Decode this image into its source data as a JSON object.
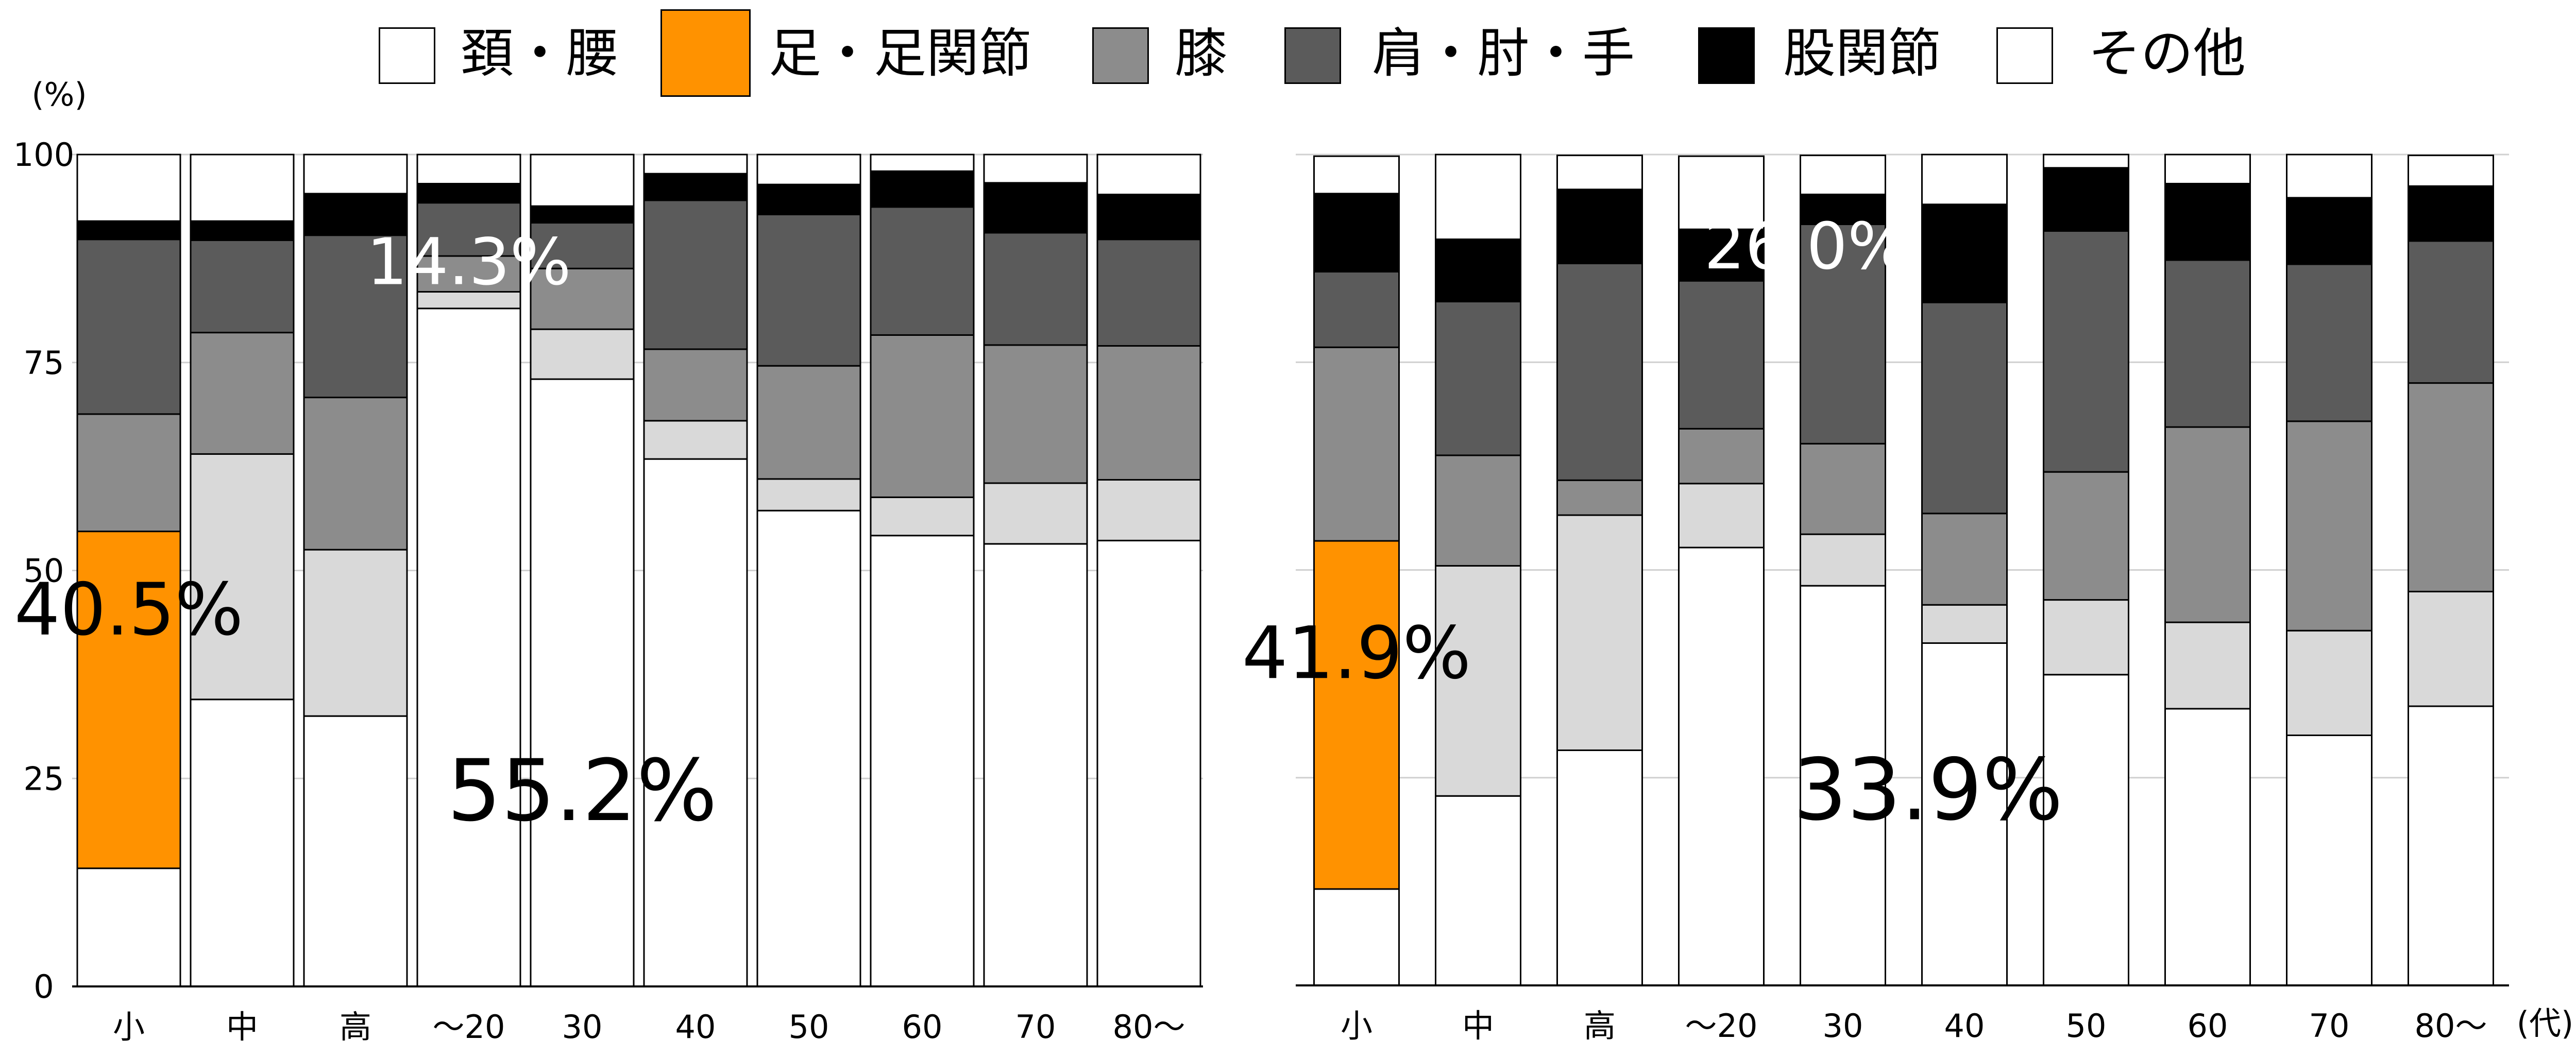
{
  "legend": {
    "items": [
      {
        "label": "頚・腰",
        "color": "#ffffff"
      },
      {
        "label": "足・足関節",
        "color": "#ff9200"
      },
      {
        "label": "膝",
        "color": "#8c8c8c"
      },
      {
        "label": "肩・肘・手",
        "color": "#5b5b5b"
      },
      {
        "label": "股関節",
        "color": "#000000"
      },
      {
        "label": "その他",
        "color": "#ffffff"
      }
    ]
  },
  "y_axis_unit": "(%)",
  "x_axis_unit": "(代)",
  "colors": {
    "neck_back": "#ffffff",
    "unlabeled": "#d9d9d9",
    "foot_ankle": "#ff9200",
    "knee": "#8c8c8c",
    "shoulder_elbow_hand": "#5b5b5b",
    "hip": "#000000",
    "other": "#ffffff",
    "gridline": "#d0d0d0"
  },
  "chart_data": [
    {
      "type": "bar",
      "stacked": true,
      "categories": [
        "小",
        "中",
        "高",
        "～20",
        "30",
        "40",
        "50",
        "60",
        "70",
        "80～"
      ],
      "ylim": [
        0,
        100
      ],
      "yticks": [
        0,
        25,
        50,
        75,
        100
      ],
      "grid": true,
      "legend_position": "top",
      "series": [
        {
          "name": "頚・腰",
          "color": "#ffffff",
          "values": [
            14.2,
            34.5,
            32.5,
            81.5,
            73.0,
            63.4,
            57.2,
            54.2,
            53.2,
            53.6
          ]
        },
        {
          "color": "#d9d9d9",
          "values": [
            0,
            29.5,
            20.0,
            2.0,
            6.0,
            4.6,
            3.8,
            4.6,
            7.3,
            7.3
          ]
        },
        {
          "name": "足・足関節",
          "color": "#ff9200",
          "values": [
            40.5,
            0,
            0,
            0,
            0,
            0,
            0,
            0,
            0,
            0
          ]
        },
        {
          "name": "膝",
          "color": "#8c8c8c",
          "values": [
            14.1,
            14.6,
            18.3,
            4.3,
            7.3,
            8.6,
            13.6,
            19.5,
            16.6,
            16.1
          ]
        },
        {
          "name": "肩・肘・手",
          "color": "#5b5b5b",
          "values": [
            21.0,
            11.1,
            19.5,
            6.4,
            5.5,
            17.9,
            18.2,
            15.4,
            13.5,
            12.8
          ]
        },
        {
          "name": "股関節",
          "color": "#000000",
          "values": [
            2.2,
            2.3,
            5.0,
            2.3,
            2.0,
            3.2,
            3.6,
            4.3,
            6.0,
            5.4
          ]
        },
        {
          "name": "その他",
          "color": "#ffffff",
          "values": [
            8.0,
            8.0,
            4.7,
            3.5,
            6.2,
            2.3,
            3.6,
            2.0,
            3.4,
            4.8
          ]
        }
      ],
      "annotations": [
        {
          "text": "40.5%",
          "category": "小",
          "y": 42
        },
        {
          "text": "14.3%",
          "category": "～20",
          "y": 90
        },
        {
          "text": "55.2%",
          "category": "～20–40",
          "y": 20
        }
      ]
    },
    {
      "type": "bar",
      "stacked": true,
      "categories": [
        "小",
        "中",
        "高",
        "～20",
        "30",
        "40",
        "50",
        "60",
        "70",
        "80～"
      ],
      "ylim": [
        0,
        100
      ],
      "yticks": [
        0,
        25,
        50,
        75,
        100
      ],
      "grid": true,
      "series": [
        {
          "name": "頚・腰",
          "color": "#ffffff",
          "values": [
            11.6,
            22.8,
            28.3,
            52.7,
            48.1,
            41.2,
            37.4,
            33.3,
            30.1,
            33.6
          ]
        },
        {
          "color": "#d9d9d9",
          "values": [
            0,
            27.7,
            28.3,
            7.7,
            6.2,
            4.6,
            9.0,
            10.4,
            12.6,
            13.8
          ]
        },
        {
          "name": "足・足関節",
          "color": "#ff9200",
          "values": [
            41.9,
            0,
            0,
            0,
            0,
            0,
            0,
            0,
            0,
            0
          ]
        },
        {
          "name": "膝",
          "color": "#8c8c8c",
          "values": [
            23.3,
            13.3,
            4.2,
            6.6,
            10.9,
            11.0,
            15.4,
            23.5,
            25.2,
            25.1
          ]
        },
        {
          "name": "肩・肘・手",
          "color": "#5b5b5b",
          "values": [
            9.1,
            18.5,
            26.1,
            17.8,
            26.4,
            25.4,
            29.0,
            20.1,
            18.9,
            17.1
          ]
        },
        {
          "name": "股関節",
          "color": "#000000",
          "values": [
            9.4,
            7.5,
            8.9,
            6.2,
            3.6,
            11.8,
            7.6,
            9.2,
            8.0,
            6.6
          ]
        },
        {
          "name": "その他",
          "color": "#ffffff",
          "values": [
            4.5,
            10.2,
            4.1,
            8.8,
            4.7,
            6.0,
            1.6,
            3.5,
            5.2,
            3.7
          ]
        }
      ],
      "annotations": [
        {
          "text": "41.9%",
          "category": "小",
          "y": 37
        },
        {
          "text": "26.0%",
          "category": "～20–30",
          "y": 86
        },
        {
          "text": "33.9%",
          "category": "～20–40",
          "y": 20
        }
      ]
    }
  ]
}
